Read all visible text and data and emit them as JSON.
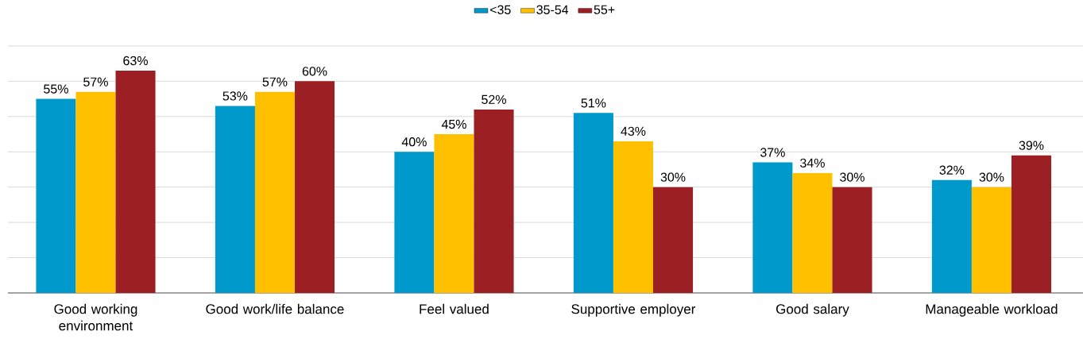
{
  "chart_data": {
    "type": "bar",
    "categories": [
      "Good working environment",
      "Good work/life balance",
      "Feel valued",
      "Supportive employer",
      "Good salary",
      "Manageable workload"
    ],
    "series": [
      {
        "name": "<35",
        "color": "#0099cc",
        "values": [
          55,
          53,
          40,
          51,
          37,
          32
        ],
        "value_labels": [
          "55%",
          "53%",
          "40%",
          "51%",
          "37%",
          "32%"
        ]
      },
      {
        "name": "35-54",
        "color": "#ffc000",
        "values": [
          57,
          57,
          45,
          43,
          34,
          30
        ],
        "value_labels": [
          "57%",
          "57%",
          "45%",
          "43%",
          "34%",
          "30%"
        ]
      },
      {
        "name": "55+",
        "color": "#9c1f23",
        "values": [
          63,
          60,
          52,
          30,
          30,
          39
        ],
        "value_labels": [
          "63%",
          "60%",
          "52%",
          "30%",
          "30%",
          "39%"
        ]
      }
    ],
    "grid": "y",
    "legend": "top",
    "tick_labels": "x"
  }
}
